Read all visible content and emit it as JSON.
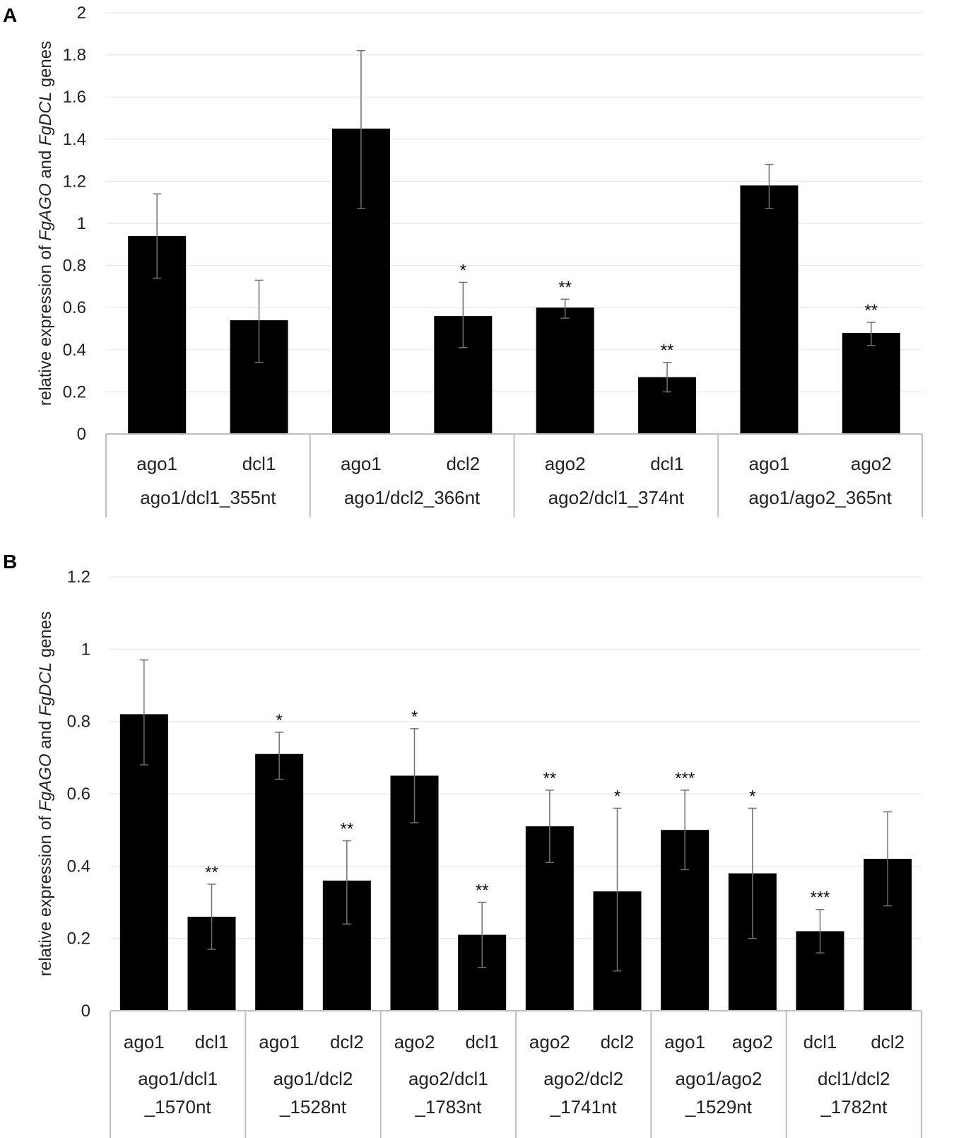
{
  "chart_data": [
    {
      "panel": "A",
      "type": "bar",
      "ylabel_parts": [
        "relative expression of ",
        "FgAGO",
        " and ",
        "FgDCL",
        " genes"
      ],
      "ylim": [
        0,
        2
      ],
      "yticks": [
        0,
        0.2,
        0.4,
        0.6,
        0.8,
        1,
        1.2,
        1.4,
        1.6,
        1.8,
        2
      ],
      "ytick_labels": [
        "0",
        "0.2",
        "0.4",
        "0.6",
        "0.8",
        "1",
        "1.2",
        "1.4",
        "1.6",
        "1.8",
        "2"
      ],
      "groups": [
        {
          "label": [
            "ago1/dcl1_355nt"
          ],
          "bars": [
            {
              "label": "ago1",
              "value": 0.94,
              "err_low": 0.74,
              "err_high": 1.14,
              "sig": ""
            },
            {
              "label": "dcl1",
              "value": 0.54,
              "err_low": 0.34,
              "err_high": 0.73,
              "sig": ""
            }
          ]
        },
        {
          "label": [
            "ago1/dcl2_366nt"
          ],
          "bars": [
            {
              "label": "ago1",
              "value": 1.45,
              "err_low": 1.07,
              "err_high": 1.82,
              "sig": ""
            },
            {
              "label": "dcl2",
              "value": 0.56,
              "err_low": 0.41,
              "err_high": 0.72,
              "sig": "*"
            }
          ]
        },
        {
          "label": [
            "ago2/dcl1_374nt"
          ],
          "bars": [
            {
              "label": "ago2",
              "value": 0.6,
              "err_low": 0.55,
              "err_high": 0.64,
              "sig": "**"
            },
            {
              "label": "dcl1",
              "value": 0.27,
              "err_low": 0.2,
              "err_high": 0.34,
              "sig": "**"
            }
          ]
        },
        {
          "label": [
            "ago1/ago2_365nt"
          ],
          "bars": [
            {
              "label": "ago1",
              "value": 1.18,
              "err_low": 1.07,
              "err_high": 1.28,
              "sig": ""
            },
            {
              "label": "ago2",
              "value": 0.48,
              "err_low": 0.42,
              "err_high": 0.53,
              "sig": "**"
            }
          ]
        }
      ]
    },
    {
      "panel": "B",
      "type": "bar",
      "ylabel_parts": [
        "relative expression of ",
        "FgAGO",
        " and ",
        "FgDCL",
        " genes"
      ],
      "ylim": [
        0,
        1.2
      ],
      "yticks": [
        0,
        0.2,
        0.4,
        0.6,
        0.8,
        1,
        1.2
      ],
      "ytick_labels": [
        "0",
        "0.2",
        "0.4",
        "0.6",
        "0.8",
        "1",
        "1.2"
      ],
      "groups": [
        {
          "label": [
            "ago1/dcl1",
            "_1570nt"
          ],
          "bars": [
            {
              "label": "ago1",
              "value": 0.82,
              "err_low": 0.68,
              "err_high": 0.97,
              "sig": ""
            },
            {
              "label": "dcl1",
              "value": 0.26,
              "err_low": 0.17,
              "err_high": 0.35,
              "sig": "**"
            }
          ]
        },
        {
          "label": [
            "ago1/dcl2",
            "_1528nt"
          ],
          "bars": [
            {
              "label": "ago1",
              "value": 0.71,
              "err_low": 0.64,
              "err_high": 0.77,
              "sig": "*"
            },
            {
              "label": "dcl2",
              "value": 0.36,
              "err_low": 0.24,
              "err_high": 0.47,
              "sig": "**"
            }
          ]
        },
        {
          "label": [
            "ago2/dcl1",
            "_1783nt"
          ],
          "bars": [
            {
              "label": "ago2",
              "value": 0.65,
              "err_low": 0.52,
              "err_high": 0.78,
              "sig": "*"
            },
            {
              "label": "dcl1",
              "value": 0.21,
              "err_low": 0.12,
              "err_high": 0.3,
              "sig": "**"
            }
          ]
        },
        {
          "label": [
            "ago2/dcl2",
            "_1741nt"
          ],
          "bars": [
            {
              "label": "ago2",
              "value": 0.51,
              "err_low": 0.41,
              "err_high": 0.61,
              "sig": "**"
            },
            {
              "label": "dcl2",
              "value": 0.33,
              "err_low": 0.11,
              "err_high": 0.56,
              "sig": "*"
            }
          ]
        },
        {
          "label": [
            "ago1/ago2",
            "_1529nt"
          ],
          "bars": [
            {
              "label": "ago1",
              "value": 0.5,
              "err_low": 0.39,
              "err_high": 0.61,
              "sig": "***"
            },
            {
              "label": "ago2",
              "value": 0.38,
              "err_low": 0.2,
              "err_high": 0.56,
              "sig": "*"
            }
          ]
        },
        {
          "label": [
            "dcl1/dcl2",
            "_1782nt"
          ],
          "bars": [
            {
              "label": "dcl1",
              "value": 0.22,
              "err_low": 0.16,
              "err_high": 0.28,
              "sig": "***"
            },
            {
              "label": "dcl2",
              "value": 0.42,
              "err_low": 0.29,
              "err_high": 0.55,
              "sig": ""
            }
          ]
        }
      ]
    }
  ]
}
